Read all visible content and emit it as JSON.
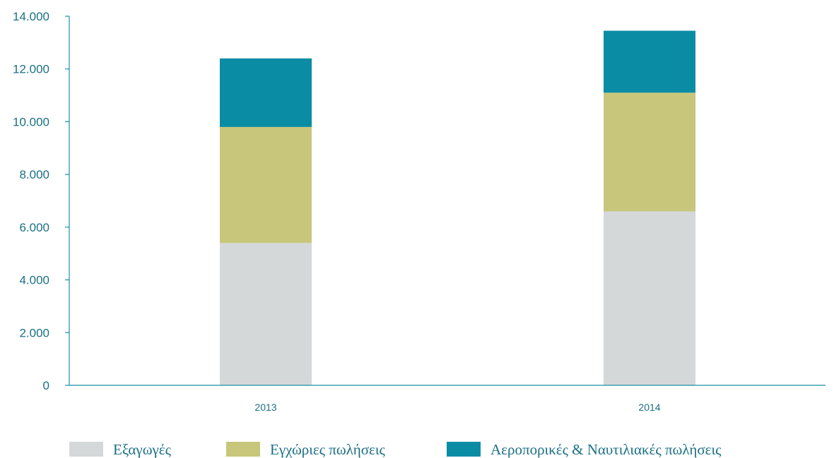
{
  "chart_data": {
    "type": "bar",
    "stacked": true,
    "categories": [
      "2013",
      "2014"
    ],
    "series": [
      {
        "name": "Εξαγωγές",
        "values": [
          5400,
          6600
        ]
      },
      {
        "name": "Εγχώριες πωλήσεις",
        "values": [
          4400,
          4500
        ]
      },
      {
        "name": "Αεροπορικές & Ναυτιλιακές πωλήσεις",
        "values": [
          2600,
          2350
        ]
      }
    ],
    "ylim": [
      0,
      14000
    ],
    "yticks": [
      {
        "value": 0,
        "label": "0"
      },
      {
        "value": 2000,
        "label": "2.000"
      },
      {
        "value": 4000,
        "label": "4.000"
      },
      {
        "value": 6000,
        "label": "6.000"
      },
      {
        "value": 8000,
        "label": "8.000"
      },
      {
        "value": 10000,
        "label": "10.000"
      },
      {
        "value": 12000,
        "label": "12.000"
      },
      {
        "value": 14000,
        "label": "14.000"
      }
    ],
    "title": "",
    "xlabel": "",
    "ylabel": "",
    "grid": false,
    "legend_position": "bottom",
    "colors": [
      "#d4d8d8",
      "#c8c67a",
      "#0a8ca5"
    ],
    "axis_color": "#1a8fa8"
  }
}
